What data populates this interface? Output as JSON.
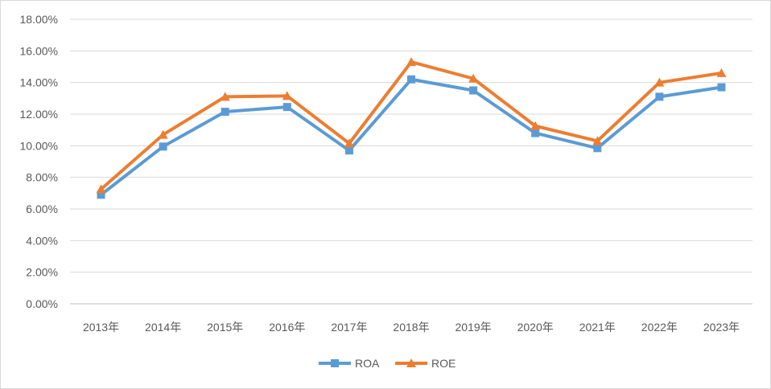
{
  "chart_data": {
    "type": "line",
    "categories": [
      "2013年",
      "2014年",
      "2015年",
      "2016年",
      "2017年",
      "2018年",
      "2019年",
      "2020年",
      "2021年",
      "2022年",
      "2023年"
    ],
    "series": [
      {
        "name": "ROA",
        "values": [
          6.9,
          9.95,
          12.15,
          12.45,
          9.7,
          14.2,
          13.5,
          10.8,
          9.85,
          13.1,
          13.7
        ],
        "color": "#5b9bd5",
        "marker": "square"
      },
      {
        "name": "ROE",
        "values": [
          7.25,
          10.7,
          13.1,
          13.15,
          10.15,
          15.3,
          14.25,
          11.25,
          10.3,
          14.0,
          14.6
        ],
        "color": "#ed7d31",
        "marker": "triangle"
      }
    ],
    "y_ticks": [
      "0.00%",
      "2.00%",
      "4.00%",
      "6.00%",
      "8.00%",
      "10.00%",
      "12.00%",
      "14.00%",
      "16.00%",
      "18.00%"
    ],
    "ylim": [
      0,
      18
    ],
    "grid": true,
    "legend_position": "bottom"
  }
}
